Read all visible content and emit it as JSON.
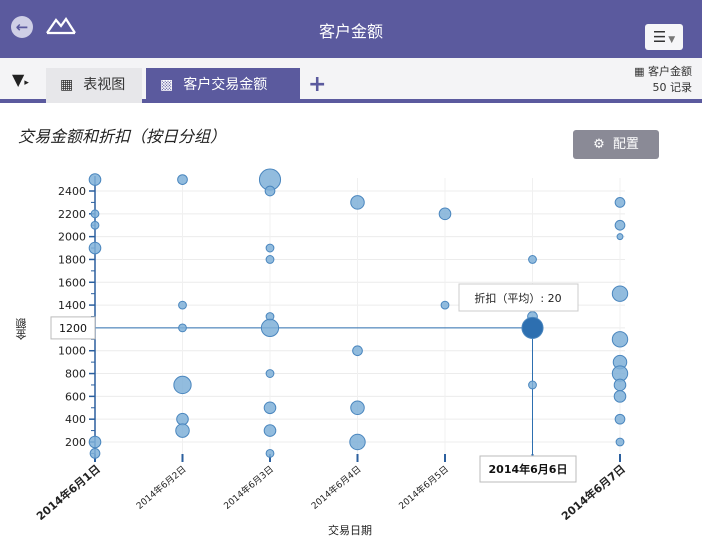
{
  "header": {
    "title": "客户金额",
    "back_icon": "back-arrow-icon",
    "logo_icon": "mountain-logo-icon",
    "menu_icon": "hamburger-menu-icon"
  },
  "tabs": {
    "filter_icon": "filter-icon",
    "items": [
      {
        "label": "表视图",
        "icon": "table-grid-icon",
        "active": false
      },
      {
        "label": "客户交易金额",
        "icon": "chart-icon",
        "active": true
      }
    ],
    "add_icon": "plus-icon",
    "source_name": "客户金额",
    "source_count": "50 记录"
  },
  "toolbar": {
    "chart_title": "交易金额和折扣（按日分组）",
    "config_label": "配置"
  },
  "colors": {
    "header_bg": "#5b5a9e",
    "bubble_fill": "#7fb0d8",
    "bubble_stroke": "#4a86be",
    "highlight": "#2d6fb0"
  },
  "chart_data": {
    "type": "scatter",
    "xlabel": "交易日期",
    "ylabel": "金额",
    "x_ticks": [
      "2014年6月1日",
      "2014年6月2日",
      "2014年6月3日",
      "2014年6月4日",
      "2014年6月5日",
      "2014年6月6日",
      "2014年6月7日"
    ],
    "y_ticks": [
      200,
      400,
      600,
      800,
      1000,
      1200,
      1400,
      1600,
      1800,
      2000,
      2200,
      2400
    ],
    "ylim": [
      100,
      2500
    ],
    "points": [
      {
        "x": 0,
        "y": 2500,
        "size": 4
      },
      {
        "x": 0,
        "y": 2200,
        "size": 2
      },
      {
        "x": 0,
        "y": 2100,
        "size": 2
      },
      {
        "x": 0,
        "y": 1900,
        "size": 4
      },
      {
        "x": 0,
        "y": 200,
        "size": 4
      },
      {
        "x": 0,
        "y": 100,
        "size": 3
      },
      {
        "x": 1,
        "y": 2500,
        "size": 3
      },
      {
        "x": 1,
        "y": 1400,
        "size": 2
      },
      {
        "x": 1,
        "y": 1200,
        "size": 2
      },
      {
        "x": 1,
        "y": 700,
        "size": 7
      },
      {
        "x": 1,
        "y": 400,
        "size": 4
      },
      {
        "x": 1,
        "y": 300,
        "size": 5
      },
      {
        "x": 2,
        "y": 2500,
        "size": 9
      },
      {
        "x": 2,
        "y": 2400,
        "size": 3
      },
      {
        "x": 2,
        "y": 1900,
        "size": 2
      },
      {
        "x": 2,
        "y": 1800,
        "size": 2
      },
      {
        "x": 2,
        "y": 1300,
        "size": 2
      },
      {
        "x": 2,
        "y": 1200,
        "size": 7
      },
      {
        "x": 2,
        "y": 800,
        "size": 2
      },
      {
        "x": 2,
        "y": 500,
        "size": 4
      },
      {
        "x": 2,
        "y": 300,
        "size": 4
      },
      {
        "x": 2,
        "y": 100,
        "size": 2
      },
      {
        "x": 3,
        "y": 2300,
        "size": 5
      },
      {
        "x": 3,
        "y": 1000,
        "size": 3
      },
      {
        "x": 3,
        "y": 500,
        "size": 5
      },
      {
        "x": 3,
        "y": 200,
        "size": 6
      },
      {
        "x": 4,
        "y": 2200,
        "size": 4
      },
      {
        "x": 4,
        "y": 1400,
        "size": 2
      },
      {
        "x": 5,
        "y": 1800,
        "size": 2
      },
      {
        "x": 5,
        "y": 1300,
        "size": 3
      },
      {
        "x": 5,
        "y": 1200,
        "size": 9
      },
      {
        "x": 5,
        "y": 700,
        "size": 2
      },
      {
        "x": 6,
        "y": 2300,
        "size": 3
      },
      {
        "x": 6,
        "y": 2100,
        "size": 3
      },
      {
        "x": 6,
        "y": 2000,
        "size": 1
      },
      {
        "x": 6,
        "y": 1500,
        "size": 6
      },
      {
        "x": 6,
        "y": 1100,
        "size": 6
      },
      {
        "x": 6,
        "y": 900,
        "size": 5
      },
      {
        "x": 6,
        "y": 800,
        "size": 6
      },
      {
        "x": 6,
        "y": 700,
        "size": 4
      },
      {
        "x": 6,
        "y": 600,
        "size": 4
      },
      {
        "x": 6,
        "y": 400,
        "size": 3
      },
      {
        "x": 6,
        "y": 200,
        "size": 2
      }
    ],
    "highlight": {
      "x": 5,
      "y": 1200
    },
    "crosshair_y_label": "1200",
    "crosshair_x_label": "2014年6月6日",
    "tooltip": "折扣（平均）: 20"
  }
}
